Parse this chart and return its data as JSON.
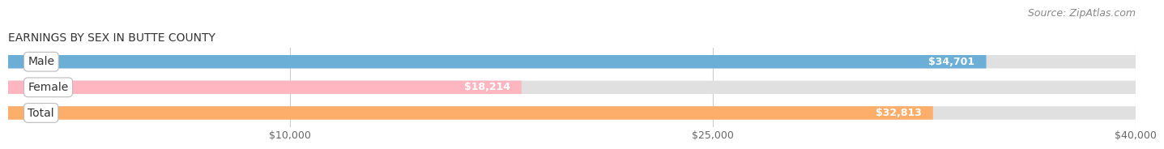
{
  "title": "EARNINGS BY SEX IN BUTTE COUNTY",
  "source": "Source: ZipAtlas.com",
  "categories": [
    "Male",
    "Female",
    "Total"
  ],
  "values": [
    34701,
    18214,
    32813
  ],
  "bar_colors": [
    "#6baed6",
    "#ffb6c1",
    "#fdae6b"
  ],
  "bar_bg_color": "#e0e0e0",
  "xlim_start": 0,
  "xlim_end": 40000,
  "xticks": [
    10000,
    25000,
    40000
  ],
  "xtick_labels": [
    "$10,000",
    "$25,000",
    "$40,000"
  ],
  "bar_height": 0.52,
  "title_fontsize": 10,
  "source_fontsize": 9,
  "tick_fontsize": 9,
  "label_fontsize": 10,
  "value_fontsize": 9,
  "background_color": "#ffffff",
  "grid_color": "#cccccc",
  "value_color": "#ffffff",
  "label_text_color": "#333333"
}
